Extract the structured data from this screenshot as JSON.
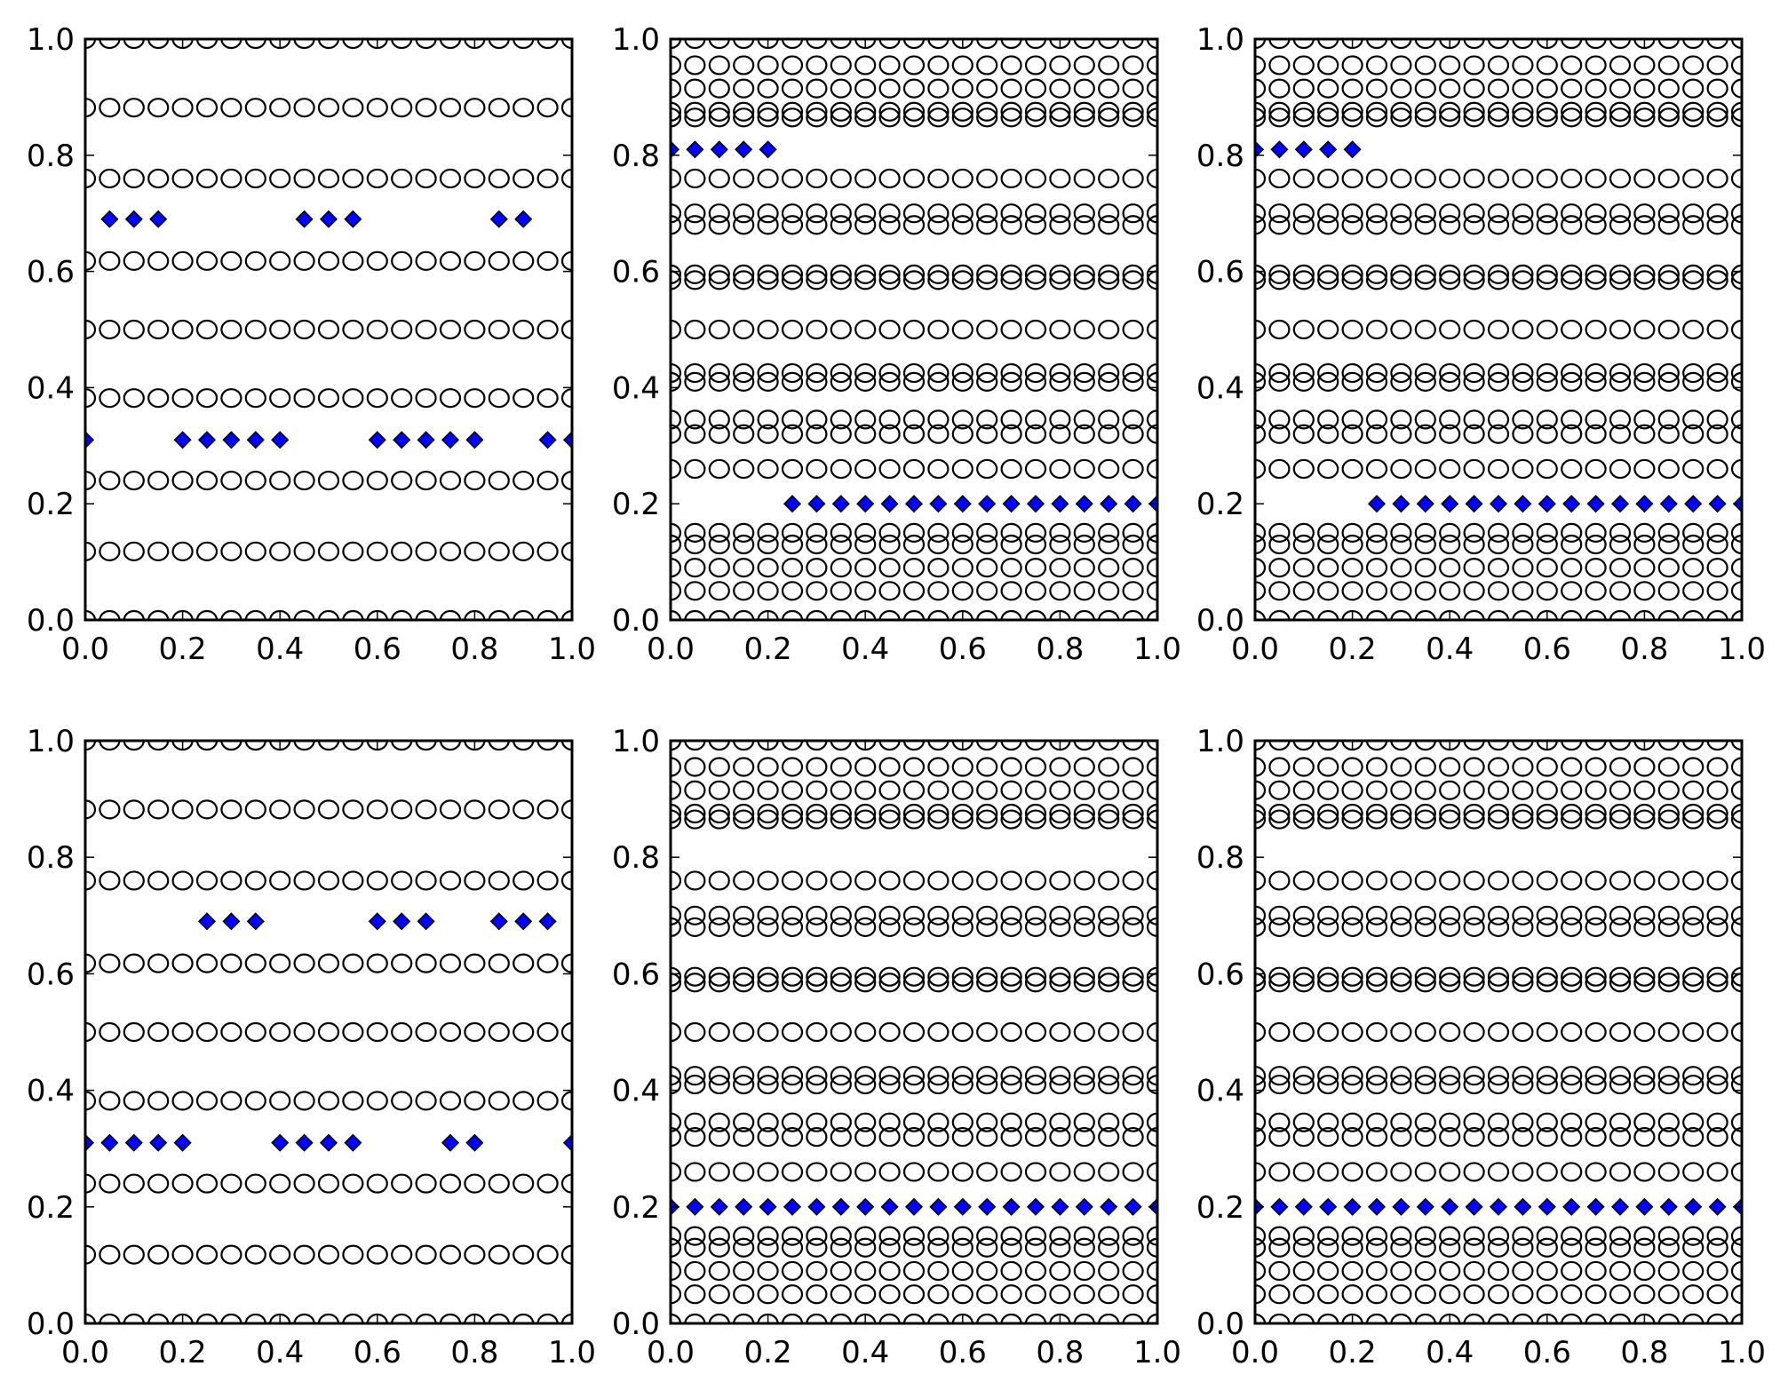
{
  "chart_data": [
    {
      "type": "scatter",
      "xlim": [
        0,
        1
      ],
      "ylim": [
        0,
        1
      ],
      "xticks": [
        "0.0",
        "0.2",
        "0.4",
        "0.6",
        "0.8",
        "1.0"
      ],
      "yticks": [
        "0.0",
        "0.2",
        "0.4",
        "0.6",
        "0.8",
        "1.0"
      ],
      "circle_rows": [
        0.0,
        0.118,
        0.24,
        0.382,
        0.5,
        0.618,
        0.76,
        0.882,
        1.0
      ],
      "diamonds": [
        {
          "y": 0.69,
          "x": [
            0.05,
            0.1,
            0.15,
            0.45,
            0.5,
            0.55,
            0.85,
            0.9
          ]
        },
        {
          "y": 0.31,
          "x": [
            0.0,
            0.2,
            0.25,
            0.3,
            0.35,
            0.4,
            0.6,
            0.65,
            0.7,
            0.75,
            0.8,
            0.95,
            1.0
          ]
        }
      ]
    },
    {
      "type": "scatter",
      "xlim": [
        0,
        1
      ],
      "ylim": [
        0,
        1
      ],
      "xticks": [
        "0.0",
        "0.2",
        "0.4",
        "0.6",
        "0.8",
        "1.0"
      ],
      "yticks": [
        "0.0",
        "0.2",
        "0.4",
        "0.6",
        "0.8",
        "1.0"
      ],
      "circle_rows": [
        0.0,
        0.05,
        0.09,
        0.13,
        0.15,
        0.26,
        0.32,
        0.345,
        0.41,
        0.425,
        0.5,
        0.585,
        0.595,
        0.68,
        0.7,
        0.76,
        0.865,
        0.875,
        0.915,
        0.955,
        1.0
      ],
      "diamonds": [
        {
          "y": 0.81,
          "x": [
            0.0,
            0.05,
            0.1,
            0.15,
            0.2
          ]
        },
        {
          "y": 0.2,
          "x": [
            0.25,
            0.3,
            0.35,
            0.4,
            0.45,
            0.5,
            0.55,
            0.6,
            0.65,
            0.7,
            0.75,
            0.8,
            0.85,
            0.9,
            0.95,
            1.0
          ]
        }
      ]
    },
    {
      "type": "scatter",
      "xlim": [
        0,
        1
      ],
      "ylim": [
        0,
        1
      ],
      "xticks": [
        "0.0",
        "0.2",
        "0.4",
        "0.6",
        "0.8",
        "1.0"
      ],
      "yticks": [
        "0.0",
        "0.2",
        "0.4",
        "0.6",
        "0.8",
        "1.0"
      ],
      "circle_rows": [
        0.0,
        0.05,
        0.09,
        0.13,
        0.15,
        0.26,
        0.32,
        0.345,
        0.41,
        0.425,
        0.5,
        0.585,
        0.595,
        0.68,
        0.7,
        0.76,
        0.865,
        0.875,
        0.915,
        0.955,
        1.0
      ],
      "diamonds": [
        {
          "y": 0.81,
          "x": [
            0.0,
            0.05,
            0.1,
            0.15,
            0.2
          ]
        },
        {
          "y": 0.2,
          "x": [
            0.25,
            0.3,
            0.35,
            0.4,
            0.45,
            0.5,
            0.55,
            0.6,
            0.65,
            0.7,
            0.75,
            0.8,
            0.85,
            0.9,
            0.95,
            1.0
          ]
        }
      ]
    },
    {
      "type": "scatter",
      "xlim": [
        0,
        1
      ],
      "ylim": [
        0,
        1
      ],
      "xticks": [
        "0.0",
        "0.2",
        "0.4",
        "0.6",
        "0.8",
        "1.0"
      ],
      "yticks": [
        "0.0",
        "0.2",
        "0.4",
        "0.6",
        "0.8",
        "1.0"
      ],
      "circle_rows": [
        0.0,
        0.118,
        0.24,
        0.382,
        0.5,
        0.618,
        0.76,
        0.882,
        1.0
      ],
      "diamonds": [
        {
          "y": 0.69,
          "x": [
            0.25,
            0.3,
            0.35,
            0.6,
            0.65,
            0.7,
            0.85,
            0.9,
            0.95
          ]
        },
        {
          "y": 0.31,
          "x": [
            0.0,
            0.05,
            0.1,
            0.15,
            0.2,
            0.4,
            0.45,
            0.5,
            0.55,
            0.75,
            0.8,
            1.0
          ]
        }
      ]
    },
    {
      "type": "scatter",
      "xlim": [
        0,
        1
      ],
      "ylim": [
        0,
        1
      ],
      "xticks": [
        "0.0",
        "0.2",
        "0.4",
        "0.6",
        "0.8",
        "1.0"
      ],
      "yticks": [
        "0.0",
        "0.2",
        "0.4",
        "0.6",
        "0.8",
        "1.0"
      ],
      "circle_rows": [
        0.0,
        0.05,
        0.09,
        0.13,
        0.15,
        0.26,
        0.32,
        0.345,
        0.41,
        0.425,
        0.5,
        0.585,
        0.595,
        0.68,
        0.7,
        0.76,
        0.865,
        0.875,
        0.915,
        0.955,
        1.0
      ],
      "diamonds": [
        {
          "y": 0.2,
          "x": [
            0.0,
            0.05,
            0.1,
            0.15,
            0.2,
            0.25,
            0.3,
            0.35,
            0.4,
            0.45,
            0.5,
            0.55,
            0.6,
            0.65,
            0.7,
            0.75,
            0.8,
            0.85,
            0.9,
            0.95,
            1.0
          ]
        }
      ]
    },
    {
      "type": "scatter",
      "xlim": [
        0,
        1
      ],
      "ylim": [
        0,
        1
      ],
      "xticks": [
        "0.0",
        "0.2",
        "0.4",
        "0.6",
        "0.8",
        "1.0"
      ],
      "yticks": [
        "0.0",
        "0.2",
        "0.4",
        "0.6",
        "0.8",
        "1.0"
      ],
      "circle_rows": [
        0.0,
        0.05,
        0.09,
        0.13,
        0.15,
        0.26,
        0.32,
        0.345,
        0.41,
        0.425,
        0.5,
        0.585,
        0.595,
        0.68,
        0.7,
        0.76,
        0.865,
        0.875,
        0.915,
        0.955,
        1.0
      ],
      "diamonds": [
        {
          "y": 0.2,
          "x": [
            0.0,
            0.05,
            0.1,
            0.15,
            0.2,
            0.25,
            0.3,
            0.35,
            0.4,
            0.45,
            0.5,
            0.55,
            0.6,
            0.65,
            0.7,
            0.75,
            0.8,
            0.85,
            0.9,
            0.95,
            1.0
          ]
        }
      ]
    }
  ],
  "colors": {
    "diamond_fill": "#0000ff",
    "marker_edge": "#000000",
    "axes": "#000000",
    "background": "#ffffff"
  }
}
